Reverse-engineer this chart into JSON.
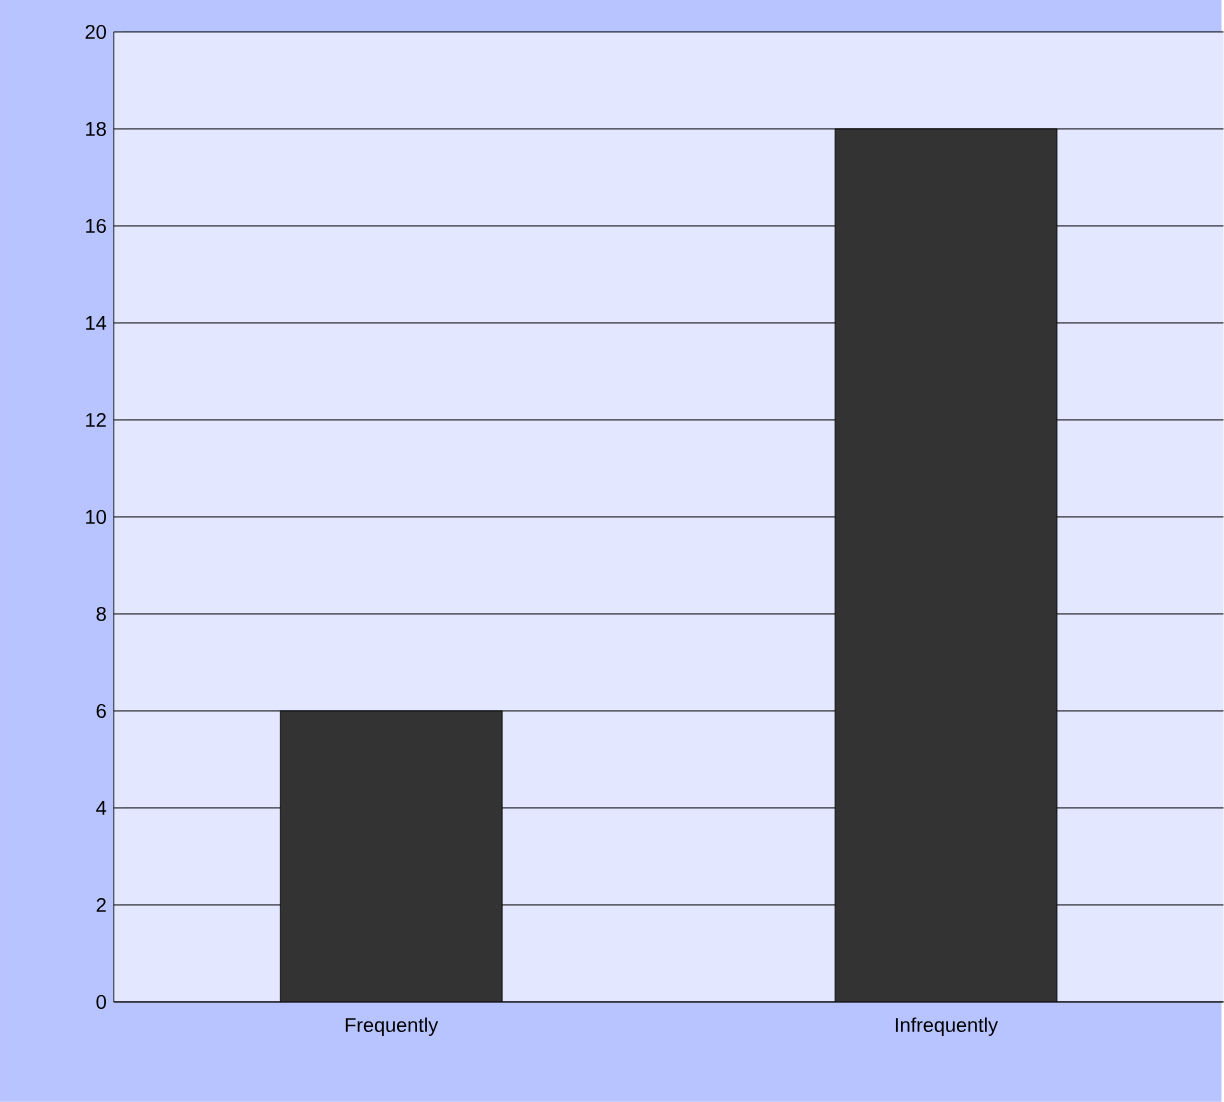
{
  "chart_data": {
    "type": "bar",
    "categories": [
      "Frequently",
      "Infrequently"
    ],
    "values": [
      6,
      18
    ],
    "color": "#333333",
    "ylim": [
      0,
      20
    ],
    "yticks": [
      0,
      2,
      4,
      6,
      8,
      10,
      12,
      14,
      16,
      18,
      20
    ],
    "grid": "y"
  }
}
